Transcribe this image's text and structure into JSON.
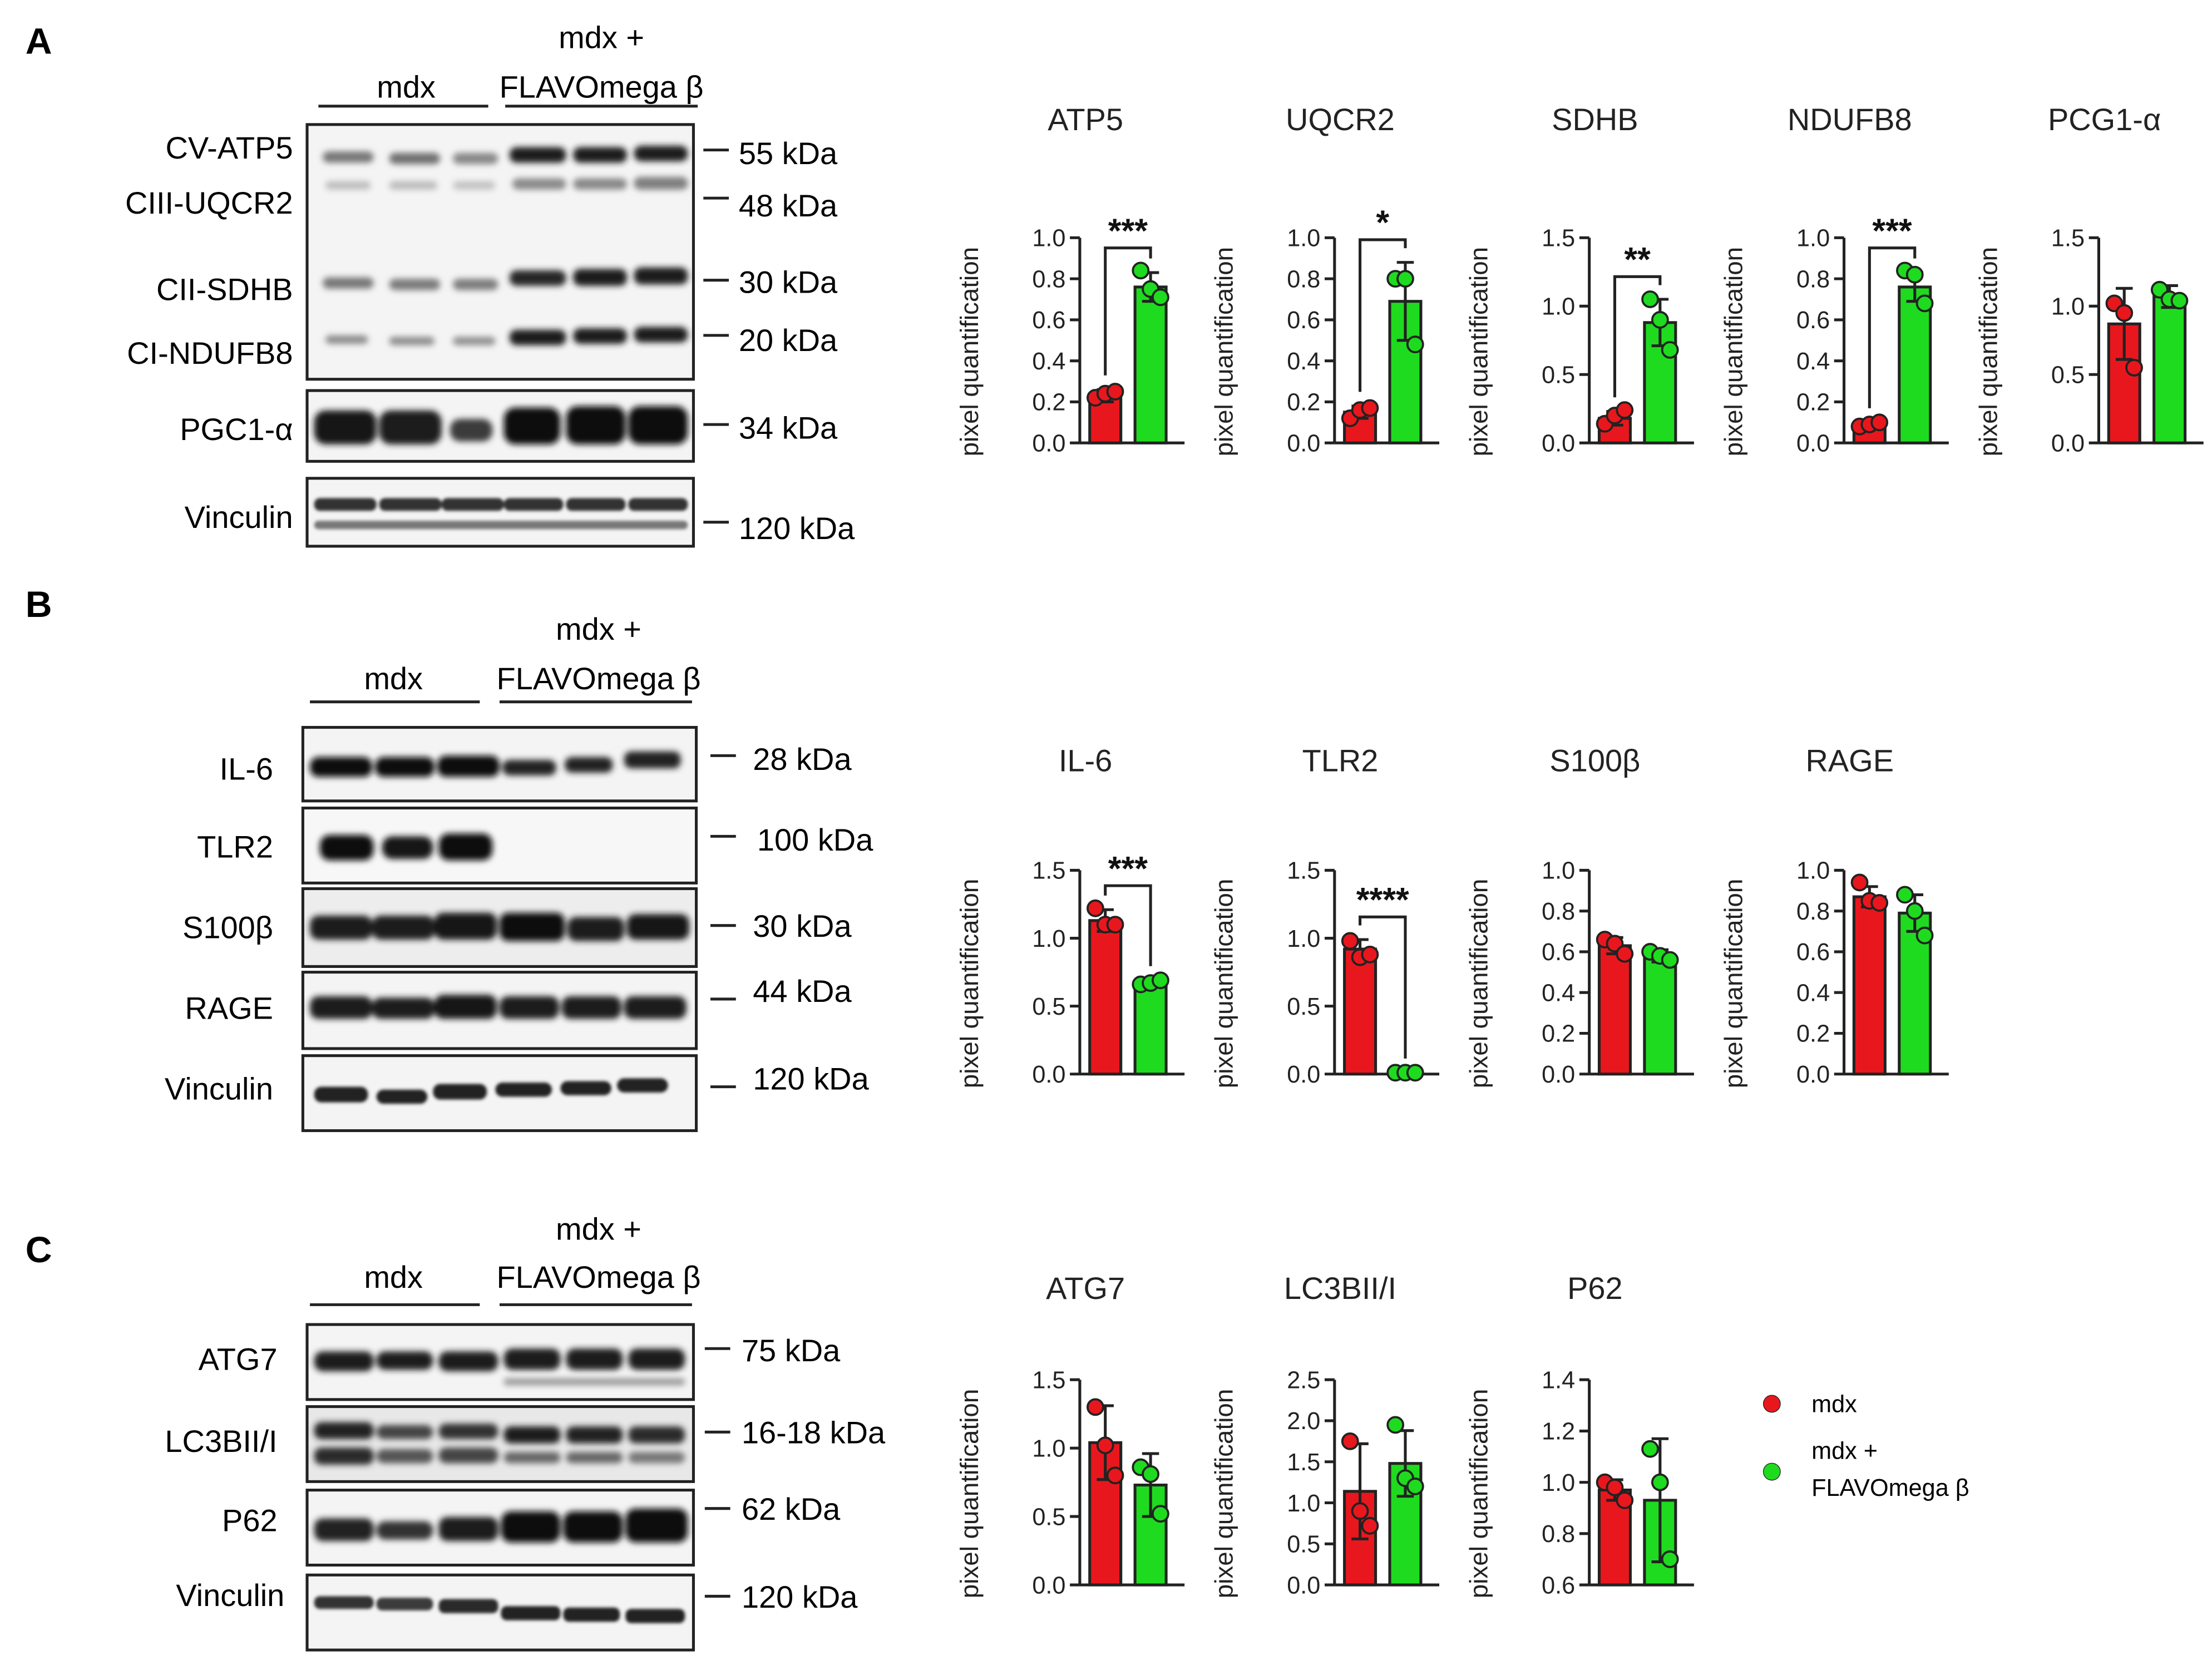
{
  "colors": {
    "mdx": "#e8171d",
    "treated": "#1fdb1f",
    "axis": "#222222",
    "band": "#1b1b1b",
    "blot_bg": "#f4f4f4"
  },
  "legend": {
    "mdx": "mdx",
    "treated_line1": "mdx +",
    "treated_line2": "FLAVOmega β"
  },
  "panels": [
    {
      "letter": "A",
      "group_left": "mdx",
      "group_right_line1": "mdx +",
      "group_right_line2": "FLAVOmega β",
      "blots": [
        {
          "label": "CV-ATP5",
          "marker": "55 kDa"
        },
        {
          "label": "CIII-UQCR2",
          "marker": "48 kDa"
        },
        {
          "label": "CII-SDHB",
          "marker": "30 kDa"
        },
        {
          "label": "CI-NDUFB8",
          "marker": "20 kDa"
        },
        {
          "label": "PGC1-α",
          "marker": "34 kDa"
        },
        {
          "label": "Vinculin",
          "marker": "120 kDa"
        }
      ]
    },
    {
      "letter": "B",
      "group_left": "mdx",
      "group_right_line1": "mdx +",
      "group_right_line2": "FLAVOmega β",
      "blots": [
        {
          "label": "IL-6",
          "marker": "28 kDa"
        },
        {
          "label": "TLR2",
          "marker": "100 kDa"
        },
        {
          "label": "S100β",
          "marker": "30 kDa"
        },
        {
          "label": "RAGE",
          "marker": "44 kDa"
        },
        {
          "label": "Vinculin",
          "marker": "120 kDa"
        }
      ]
    },
    {
      "letter": "C",
      "group_left": "mdx",
      "group_right_line1": "mdx +",
      "group_right_line2": "FLAVOmega β",
      "blots": [
        {
          "label": "ATG7",
          "marker": "75 kDa"
        },
        {
          "label": "LC3BII/I",
          "marker": "16-18 kDa"
        },
        {
          "label": "P62",
          "marker": "62 kDa"
        },
        {
          "label": "Vinculin",
          "marker": "120 kDa"
        }
      ]
    }
  ],
  "chart_data": [
    {
      "type": "bar",
      "title": "ATP5",
      "ylabel": "pixel quantification",
      "ylim": [
        0,
        1.0
      ],
      "yticks": [
        "0.0",
        "0.2",
        "0.4",
        "0.6",
        "0.8",
        "1.0"
      ],
      "significance": "***",
      "series": [
        {
          "name": "mdx",
          "mean": 0.23,
          "err": 0.03,
          "points": [
            0.22,
            0.24,
            0.25
          ]
        },
        {
          "name": "mdx + FLAVOmega β",
          "mean": 0.76,
          "err": 0.07,
          "points": [
            0.84,
            0.75,
            0.71
          ]
        }
      ]
    },
    {
      "type": "bar",
      "title": "UQCR2",
      "ylabel": "pixel quantification",
      "ylim": [
        0,
        1.0
      ],
      "yticks": [
        "0.0",
        "0.2",
        "0.4",
        "0.6",
        "0.8",
        "1.0"
      ],
      "significance": "*",
      "series": [
        {
          "name": "mdx",
          "mean": 0.15,
          "err": 0.03,
          "points": [
            0.12,
            0.16,
            0.17
          ]
        },
        {
          "name": "mdx + FLAVOmega β",
          "mean": 0.69,
          "err": 0.19,
          "points": [
            0.8,
            0.8,
            0.48
          ]
        }
      ]
    },
    {
      "type": "bar",
      "title": "SDHB",
      "ylabel": "pixel quantification",
      "ylim": [
        0,
        1.5
      ],
      "yticks": [
        "0.0",
        "0.5",
        "1.0",
        "1.5"
      ],
      "significance": "**",
      "series": [
        {
          "name": "mdx",
          "mean": 0.18,
          "err": 0.05,
          "points": [
            0.14,
            0.2,
            0.24
          ]
        },
        {
          "name": "mdx + FLAVOmega β",
          "mean": 0.88,
          "err": 0.17,
          "points": [
            1.05,
            0.9,
            0.68
          ]
        }
      ]
    },
    {
      "type": "bar",
      "title": "NDUFB8",
      "ylabel": "pixel quantification",
      "ylim": [
        0,
        1.0
      ],
      "yticks": [
        "0.0",
        "0.2",
        "0.4",
        "0.6",
        "0.8",
        "1.0"
      ],
      "significance": "***",
      "series": [
        {
          "name": "mdx",
          "mean": 0.09,
          "err": 0.01,
          "points": [
            0.08,
            0.09,
            0.1
          ]
        },
        {
          "name": "mdx + FLAVOmega β",
          "mean": 0.76,
          "err": 0.07,
          "points": [
            0.84,
            0.82,
            0.68
          ]
        }
      ]
    },
    {
      "type": "bar",
      "title": "PCG1-α",
      "ylabel": "pixel quantification",
      "ylim": [
        0,
        1.5
      ],
      "yticks": [
        "0.0",
        "0.5",
        "1.0",
        "1.5"
      ],
      "significance": "",
      "series": [
        {
          "name": "mdx",
          "mean": 0.87,
          "err": 0.26,
          "points": [
            1.02,
            0.95,
            0.55
          ]
        },
        {
          "name": "mdx + FLAVOmega β",
          "mean": 1.07,
          "err": 0.08,
          "points": [
            1.12,
            1.05,
            1.04
          ]
        }
      ]
    },
    {
      "type": "bar",
      "title": "IL-6",
      "ylabel": "pixel quantification",
      "ylim": [
        0,
        1.5
      ],
      "yticks": [
        "0.0",
        "0.5",
        "1.0",
        "1.5"
      ],
      "significance": "***",
      "series": [
        {
          "name": "mdx",
          "mean": 1.13,
          "err": 0.08,
          "points": [
            1.22,
            1.1,
            1.1
          ]
        },
        {
          "name": "mdx + FLAVOmega β",
          "mean": 0.67,
          "err": 0.02,
          "points": [
            0.66,
            0.67,
            0.69
          ]
        }
      ]
    },
    {
      "type": "bar",
      "title": "TLR2",
      "ylabel": "pixel quantification",
      "ylim": [
        0,
        1.5
      ],
      "yticks": [
        "0.0",
        "0.5",
        "1.0",
        "1.5"
      ],
      "significance": "****",
      "series": [
        {
          "name": "mdx",
          "mean": 0.92,
          "err": 0.07,
          "points": [
            0.98,
            0.86,
            0.88
          ]
        },
        {
          "name": "mdx + FLAVOmega β",
          "mean": 0.01,
          "err": 0.0,
          "points": [
            0.01,
            0.01,
            0.01
          ]
        }
      ]
    },
    {
      "type": "bar",
      "title": "S100β",
      "ylabel": "pixel quantification",
      "ylim": [
        0,
        1.0
      ],
      "yticks": [
        "0.0",
        "0.2",
        "0.4",
        "0.6",
        "0.8",
        "1.0"
      ],
      "significance": "",
      "series": [
        {
          "name": "mdx",
          "mean": 0.63,
          "err": 0.04,
          "points": [
            0.66,
            0.64,
            0.59
          ]
        },
        {
          "name": "mdx + FLAVOmega β",
          "mean": 0.58,
          "err": 0.03,
          "points": [
            0.6,
            0.58,
            0.56
          ]
        }
      ]
    },
    {
      "type": "bar",
      "title": "RAGE",
      "ylabel": "pixel quantification",
      "ylim": [
        0,
        1.0
      ],
      "yticks": [
        "0.0",
        "0.2",
        "0.4",
        "0.6",
        "0.8",
        "1.0"
      ],
      "significance": "",
      "series": [
        {
          "name": "mdx",
          "mean": 0.87,
          "err": 0.05,
          "points": [
            0.94,
            0.85,
            0.84
          ]
        },
        {
          "name": "mdx + FLAVOmega β",
          "mean": 0.79,
          "err": 0.09,
          "points": [
            0.88,
            0.8,
            0.68
          ]
        }
      ]
    },
    {
      "type": "bar",
      "title": "ATG7",
      "ylabel": "pixel quantification",
      "ylim": [
        0,
        1.5
      ],
      "yticks": [
        "0.0",
        "0.5",
        "1.0",
        "1.5"
      ],
      "significance": "",
      "series": [
        {
          "name": "mdx",
          "mean": 1.04,
          "err": 0.27,
          "points": [
            1.3,
            1.02,
            0.8
          ]
        },
        {
          "name": "mdx + FLAVOmega β",
          "mean": 0.73,
          "err": 0.23,
          "points": [
            0.86,
            0.81,
            0.52
          ]
        }
      ]
    },
    {
      "type": "bar",
      "title": "LC3BII/I",
      "ylabel": "pixel quantification",
      "ylim": [
        0,
        2.5
      ],
      "yticks": [
        "0.0",
        "0.5",
        "1.0",
        "1.5",
        "2.0",
        "2.5"
      ],
      "significance": "",
      "series": [
        {
          "name": "mdx",
          "mean": 1.14,
          "err": 0.58,
          "points": [
            1.75,
            0.9,
            0.72
          ]
        },
        {
          "name": "mdx + FLAVOmega β",
          "mean": 1.48,
          "err": 0.4,
          "points": [
            1.95,
            1.3,
            1.2
          ]
        }
      ]
    },
    {
      "type": "bar",
      "title": "P62",
      "ylabel": "pixel quantification",
      "ylim": [
        0.6,
        1.4
      ],
      "yticks": [
        "0.6",
        "0.8",
        "1.0",
        "1.2",
        "1.4"
      ],
      "significance": "",
      "series": [
        {
          "name": "mdx",
          "mean": 0.97,
          "err": 0.04,
          "points": [
            1.0,
            0.98,
            0.93
          ]
        },
        {
          "name": "mdx + FLAVOmega β",
          "mean": 0.93,
          "err": 0.24,
          "points": [
            1.13,
            1.0,
            0.7
          ]
        }
      ]
    }
  ]
}
